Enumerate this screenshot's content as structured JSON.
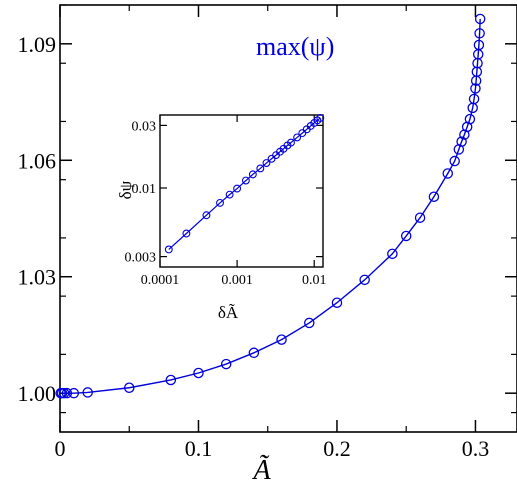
{
  "chart_data": [
    {
      "type": "line",
      "xlabel": "Ã",
      "ylabel": "",
      "xlim": [
        0,
        0.33
      ],
      "ylim": [
        0.99,
        1.1
      ],
      "xticks": [
        0,
        0.1,
        0.2,
        0.3
      ],
      "xtick_labels": [
        "0",
        "0.1",
        "0.2",
        "0.3"
      ],
      "yticks": [
        1.0,
        1.03,
        1.06,
        1.09
      ],
      "ytick_labels": [
        "1.00",
        "1.03",
        "1.06",
        "1.09"
      ],
      "annotation": "max(ψ)",
      "colors": {
        "series": "#0000dd",
        "axes": "#000000",
        "annotation": "#0000dd"
      },
      "grid": false,
      "series": [
        {
          "x": [
            0.0005,
            0.0015,
            0.003,
            0.005,
            0.01,
            0.02,
            0.05,
            0.08,
            0.1,
            0.12,
            0.14,
            0.16,
            0.18,
            0.2,
            0.22,
            0.24,
            0.25,
            0.26,
            0.27,
            0.28,
            0.285,
            0.288,
            0.29,
            0.292,
            0.294,
            0.296,
            0.298,
            0.299,
            0.3,
            0.3005,
            0.301,
            0.3015,
            0.302,
            0.3025,
            0.303,
            0.3034
          ],
          "y": [
            1.0,
            1.0,
            1.0,
            1.0,
            1.0,
            1.0002,
            1.0014,
            1.0034,
            1.0052,
            1.0075,
            1.0104,
            1.0138,
            1.0181,
            1.0233,
            1.0292,
            1.0359,
            1.0405,
            1.0452,
            1.0506,
            1.0566,
            1.0598,
            1.0628,
            1.0648,
            1.0666,
            1.0686,
            1.0706,
            1.0735,
            1.0758,
            1.0785,
            1.0805,
            1.0828,
            1.085,
            1.0873,
            1.0897,
            1.0927,
            1.0964
          ]
        }
      ]
    },
    {
      "type": "line",
      "xlabel": "δÃ",
      "ylabel": "δψ",
      "xscale": "log",
      "yscale": "log",
      "xlim": [
        0.0001,
        0.013
      ],
      "ylim": [
        0.0025,
        0.036
      ],
      "xticks": [
        0.0001,
        0.001,
        0.01
      ],
      "xtick_labels": [
        "0.0001",
        "0.001",
        "0.01"
      ],
      "yticks": [
        0.003,
        0.01,
        0.03
      ],
      "ytick_labels": [
        "0.003",
        "0.01",
        "0.03"
      ],
      "grid": false,
      "series": [
        {
          "x": [
            0.00013,
            0.00022,
            0.0004,
            0.0006,
            0.0008,
            0.001,
            0.0013,
            0.0016,
            0.002,
            0.0024,
            0.0028,
            0.0032,
            0.0036,
            0.004,
            0.0045,
            0.005,
            0.006,
            0.007,
            0.008,
            0.009,
            0.01,
            0.011,
            0.012
          ],
          "y": [
            0.0034,
            0.0045,
            0.0062,
            0.0077,
            0.0089,
            0.0099,
            0.0114,
            0.0127,
            0.0141,
            0.0155,
            0.0167,
            0.0178,
            0.0189,
            0.0199,
            0.0211,
            0.0222,
            0.0243,
            0.0262,
            0.028,
            0.0297,
            0.0313,
            0.0328,
            0.0342
          ]
        }
      ]
    }
  ]
}
